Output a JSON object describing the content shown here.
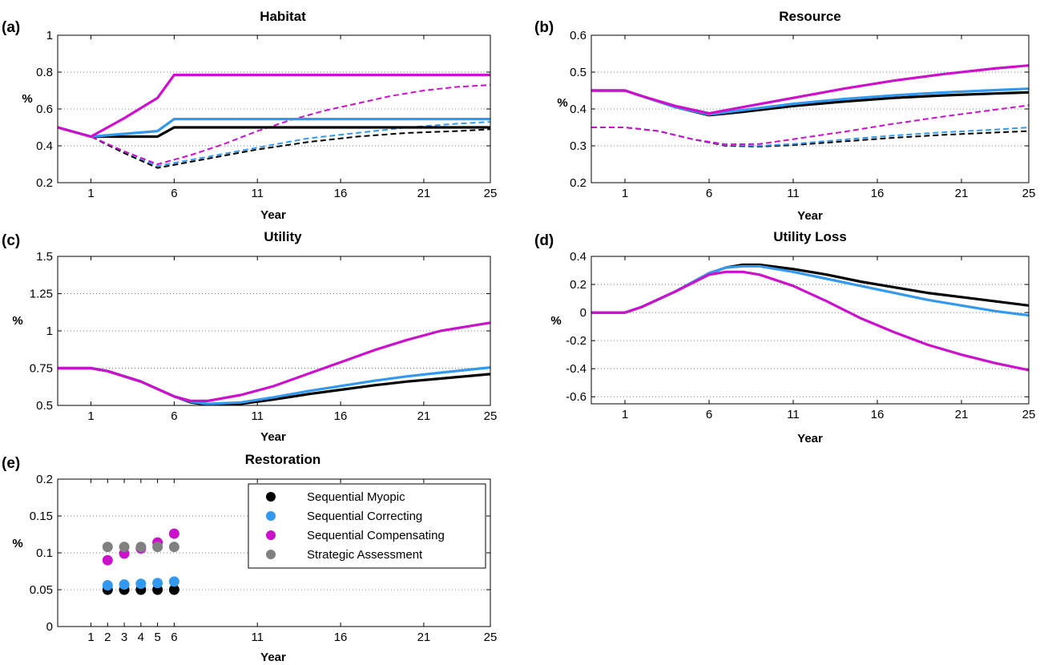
{
  "colors": {
    "myopic": "#000000",
    "correcting": "#3399ee",
    "compensating": "#cc11cc",
    "strategic": "#808080",
    "grid": "#555555"
  },
  "legend": {
    "entries": [
      {
        "label": "Sequential Myopic",
        "color": "#000000"
      },
      {
        "label": "Sequential Correcting",
        "color": "#3399ee"
      },
      {
        "label": "Sequential Compensating",
        "color": "#cc11cc"
      },
      {
        "label": "Strategic Assessment",
        "color": "#808080"
      }
    ],
    "placement": "inside panel (e), upper-middle"
  },
  "chart_data": [
    {
      "panel": "(a)",
      "title": "Habitat",
      "type": "line",
      "xlabel": "Year",
      "ylabel": "%",
      "xlim": [
        -1,
        25
      ],
      "ylim": [
        0.2,
        1
      ],
      "xticks": [
        1,
        6,
        11,
        16,
        21,
        25
      ],
      "yticks": [
        "0.2",
        "0.4",
        "0.6",
        "0.8",
        "1"
      ],
      "grid": "horizontal dotted",
      "series": [
        {
          "ref": "myopic",
          "style": "solid",
          "x": [
            -1,
            1,
            5,
            6,
            25
          ],
          "y": [
            0.5,
            0.45,
            0.45,
            0.5,
            0.5
          ]
        },
        {
          "ref": "correcting",
          "style": "solid",
          "x": [
            -1,
            1,
            5,
            6,
            25
          ],
          "y": [
            0.5,
            0.45,
            0.48,
            0.545,
            0.545
          ]
        },
        {
          "ref": "compensating",
          "style": "solid",
          "x": [
            -1,
            1,
            3,
            5,
            6,
            25
          ],
          "y": [
            0.5,
            0.45,
            0.55,
            0.66,
            0.785,
            0.785
          ]
        },
        {
          "ref": "myopic",
          "style": "dashed",
          "x": [
            -1,
            1,
            3,
            5,
            8,
            11,
            14,
            17,
            20,
            23,
            25
          ],
          "y": [
            0.5,
            0.45,
            0.36,
            0.28,
            0.33,
            0.38,
            0.42,
            0.45,
            0.47,
            0.48,
            0.49
          ]
        },
        {
          "ref": "correcting",
          "style": "dashed",
          "x": [
            -1,
            1,
            3,
            5,
            8,
            11,
            14,
            17,
            20,
            23,
            25
          ],
          "y": [
            0.5,
            0.45,
            0.37,
            0.29,
            0.34,
            0.39,
            0.44,
            0.47,
            0.5,
            0.52,
            0.53
          ]
        },
        {
          "ref": "compensating",
          "style": "dashed",
          "x": [
            -1,
            1,
            3,
            5,
            7,
            9,
            11,
            13,
            15,
            17,
            19,
            21,
            23,
            25
          ],
          "y": [
            0.5,
            0.45,
            0.37,
            0.3,
            0.35,
            0.41,
            0.48,
            0.54,
            0.59,
            0.63,
            0.67,
            0.7,
            0.72,
            0.73
          ]
        }
      ]
    },
    {
      "panel": "(b)",
      "title": "Resource",
      "type": "line",
      "xlabel": "Year",
      "ylabel": "%",
      "xlim": [
        -1,
        25
      ],
      "ylim": [
        0.2,
        0.6
      ],
      "xticks": [
        1,
        6,
        11,
        16,
        21,
        25
      ],
      "yticks": [
        "0.2",
        "0.3",
        "0.4",
        "0.5",
        "0.6"
      ],
      "grid": "horizontal dotted",
      "series": [
        {
          "ref": "myopic",
          "style": "solid",
          "x": [
            -1,
            1,
            2,
            4,
            6,
            8,
            11,
            14,
            17,
            20,
            23,
            25
          ],
          "y": [
            0.45,
            0.45,
            0.435,
            0.405,
            0.383,
            0.392,
            0.408,
            0.42,
            0.43,
            0.437,
            0.442,
            0.445
          ]
        },
        {
          "ref": "correcting",
          "style": "solid",
          "x": [
            -1,
            1,
            2,
            4,
            6,
            8,
            11,
            14,
            17,
            20,
            23,
            25
          ],
          "y": [
            0.45,
            0.45,
            0.435,
            0.405,
            0.385,
            0.397,
            0.414,
            0.427,
            0.437,
            0.445,
            0.451,
            0.455
          ]
        },
        {
          "ref": "compensating",
          "style": "solid",
          "x": [
            -1,
            1,
            2,
            4,
            6,
            8,
            11,
            14,
            17,
            20,
            23,
            25
          ],
          "y": [
            0.45,
            0.45,
            0.435,
            0.408,
            0.388,
            0.405,
            0.43,
            0.455,
            0.477,
            0.495,
            0.51,
            0.518
          ]
        },
        {
          "ref": "myopic",
          "style": "dashed",
          "x": [
            -1,
            1,
            3,
            5,
            7,
            9,
            11,
            14,
            17,
            20,
            23,
            25
          ],
          "y": [
            0.35,
            0.35,
            0.34,
            0.318,
            0.3,
            0.298,
            0.302,
            0.312,
            0.322,
            0.33,
            0.336,
            0.34
          ]
        },
        {
          "ref": "correcting",
          "style": "dashed",
          "x": [
            -1,
            1,
            3,
            5,
            7,
            9,
            11,
            14,
            17,
            20,
            23,
            25
          ],
          "y": [
            0.35,
            0.35,
            0.34,
            0.318,
            0.302,
            0.3,
            0.305,
            0.317,
            0.328,
            0.337,
            0.344,
            0.35
          ]
        },
        {
          "ref": "compensating",
          "style": "dashed",
          "x": [
            -1,
            1,
            3,
            5,
            7,
            9,
            11,
            14,
            17,
            20,
            23,
            25
          ],
          "y": [
            0.35,
            0.35,
            0.34,
            0.318,
            0.304,
            0.305,
            0.318,
            0.338,
            0.36,
            0.38,
            0.398,
            0.41
          ]
        }
      ]
    },
    {
      "panel": "(c)",
      "title": "Utility",
      "type": "line",
      "xlabel": "Year",
      "ylabel": "%",
      "xlim": [
        -1,
        25
      ],
      "ylim": [
        0.5,
        1.5
      ],
      "xticks": [
        1,
        6,
        11,
        16,
        21,
        25
      ],
      "yticks": [
        "0.5",
        "0.75",
        "1",
        "1.25",
        "1.5"
      ],
      "grid": "horizontal dotted",
      "series": [
        {
          "ref": "myopic",
          "style": "solid",
          "x": [
            -1,
            1,
            2,
            4,
            6,
            7,
            8,
            10,
            12,
            14,
            16,
            18,
            20,
            22,
            25
          ],
          "y": [
            0.75,
            0.75,
            0.73,
            0.66,
            0.56,
            0.52,
            0.505,
            0.51,
            0.54,
            0.575,
            0.605,
            0.635,
            0.66,
            0.68,
            0.71
          ]
        },
        {
          "ref": "correcting",
          "style": "solid",
          "x": [
            -1,
            1,
            2,
            4,
            6,
            7,
            8,
            10,
            12,
            14,
            16,
            18,
            20,
            22,
            25
          ],
          "y": [
            0.75,
            0.75,
            0.73,
            0.66,
            0.56,
            0.525,
            0.51,
            0.52,
            0.555,
            0.595,
            0.63,
            0.665,
            0.695,
            0.72,
            0.755
          ]
        },
        {
          "ref": "compensating",
          "style": "solid",
          "x": [
            -1,
            1,
            2,
            4,
            6,
            7,
            8,
            10,
            12,
            14,
            16,
            18,
            20,
            22,
            25
          ],
          "y": [
            0.75,
            0.75,
            0.73,
            0.66,
            0.56,
            0.53,
            0.53,
            0.57,
            0.63,
            0.71,
            0.79,
            0.87,
            0.94,
            1.0,
            1.055
          ]
        }
      ]
    },
    {
      "panel": "(d)",
      "title": "Utility Loss",
      "type": "line",
      "xlabel": "Year",
      "ylabel": "%",
      "xlim": [
        -1,
        25
      ],
      "ylim": [
        -0.65,
        0.4
      ],
      "xticks": [
        1,
        6,
        11,
        16,
        21,
        25
      ],
      "yticks": [
        "-0.6",
        "-0.4",
        "-0.2",
        "0",
        "0.2",
        "0.4"
      ],
      "grid": "horizontal dotted",
      "series": [
        {
          "ref": "myopic",
          "style": "solid",
          "x": [
            -1,
            1,
            2,
            4,
            6,
            7,
            8,
            9,
            11,
            13,
            15,
            17,
            19,
            21,
            23,
            25
          ],
          "y": [
            0,
            0,
            0.04,
            0.15,
            0.28,
            0.32,
            0.34,
            0.34,
            0.31,
            0.27,
            0.22,
            0.18,
            0.14,
            0.11,
            0.08,
            0.05
          ]
        },
        {
          "ref": "correcting",
          "style": "solid",
          "x": [
            -1,
            1,
            2,
            4,
            6,
            7,
            8,
            9,
            11,
            13,
            15,
            17,
            19,
            21,
            23,
            25
          ],
          "y": [
            0,
            0,
            0.04,
            0.15,
            0.28,
            0.32,
            0.33,
            0.33,
            0.29,
            0.24,
            0.19,
            0.14,
            0.09,
            0.05,
            0.01,
            -0.02
          ]
        },
        {
          "ref": "compensating",
          "style": "solid",
          "x": [
            -1,
            1,
            2,
            4,
            6,
            7,
            8,
            9,
            11,
            13,
            15,
            17,
            19,
            21,
            23,
            25
          ],
          "y": [
            0,
            0,
            0.04,
            0.15,
            0.27,
            0.29,
            0.29,
            0.27,
            0.19,
            0.08,
            -0.04,
            -0.14,
            -0.23,
            -0.3,
            -0.36,
            -0.41
          ]
        }
      ]
    },
    {
      "panel": "(e)",
      "title": "Restoration",
      "type": "scatter",
      "xlabel": "Year",
      "ylabel": "%",
      "xlim": [
        -1,
        25
      ],
      "ylim": [
        0,
        0.2
      ],
      "xticks": [
        1,
        2,
        3,
        4,
        5,
        6,
        11,
        16,
        21,
        25
      ],
      "yticks": [
        "0",
        "0.05",
        "0.1",
        "0.15",
        "0.2"
      ],
      "grid": "horizontal dotted",
      "series": [
        {
          "ref": "myopic",
          "name": "Sequential Myopic",
          "x": [
            2,
            3,
            4,
            5,
            6
          ],
          "y": [
            0.05,
            0.05,
            0.05,
            0.05,
            0.05
          ]
        },
        {
          "ref": "correcting",
          "name": "Sequential Correcting",
          "x": [
            2,
            3,
            4,
            5,
            6
          ],
          "y": [
            0.056,
            0.057,
            0.058,
            0.059,
            0.061
          ]
        },
        {
          "ref": "compensating",
          "name": "Sequential Compensating",
          "x": [
            2,
            3,
            4,
            5,
            6
          ],
          "y": [
            0.09,
            0.099,
            0.106,
            0.114,
            0.126
          ]
        },
        {
          "ref": "strategic",
          "name": "Strategic Assessment",
          "x": [
            2,
            3,
            4,
            5,
            6
          ],
          "y": [
            0.108,
            0.108,
            0.108,
            0.108,
            0.108
          ]
        }
      ]
    }
  ]
}
